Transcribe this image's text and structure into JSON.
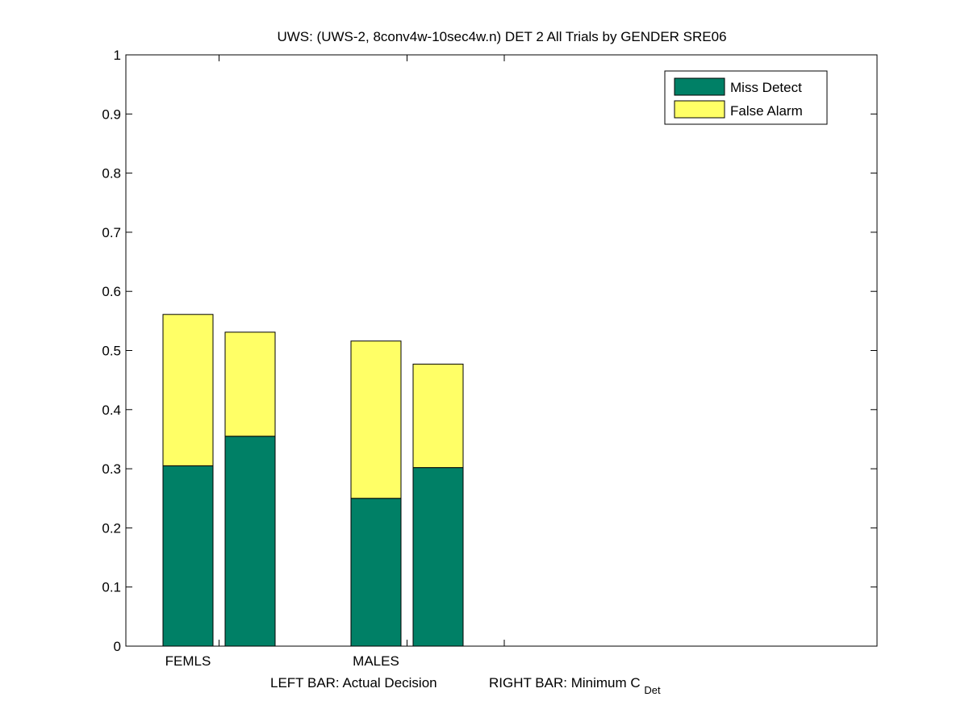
{
  "chart_data": {
    "type": "bar",
    "stacked": true,
    "title": "UWS: (UWS-2, 8conv4w-10sec4w.n) DET 2 All Trials by GENDER SRE06",
    "xlabel_left": "LEFT BAR: Actual Decision",
    "xlabel_right_main": "RIGHT BAR: Minimum C",
    "xlabel_right_sub": "Det",
    "ylim": [
      0,
      1
    ],
    "yticks": [
      "0",
      "0.1",
      "0.2",
      "0.3",
      "0.4",
      "0.5",
      "0.6",
      "0.7",
      "0.8",
      "0.9",
      "1"
    ],
    "groups": [
      "FEMLS",
      "MALES"
    ],
    "bar_roles": [
      "Actual Decision",
      "Minimum C_Det"
    ],
    "series": [
      {
        "name": "Miss Detect",
        "color": "#008066",
        "values": [
          [
            0.305,
            0.355
          ],
          [
            0.25,
            0.302
          ]
        ]
      },
      {
        "name": "False Alarm",
        "color": "#ffff66",
        "values": [
          [
            0.256,
            0.176
          ],
          [
            0.266,
            0.175
          ]
        ]
      }
    ],
    "legend_position": "top-right",
    "grid": false
  }
}
